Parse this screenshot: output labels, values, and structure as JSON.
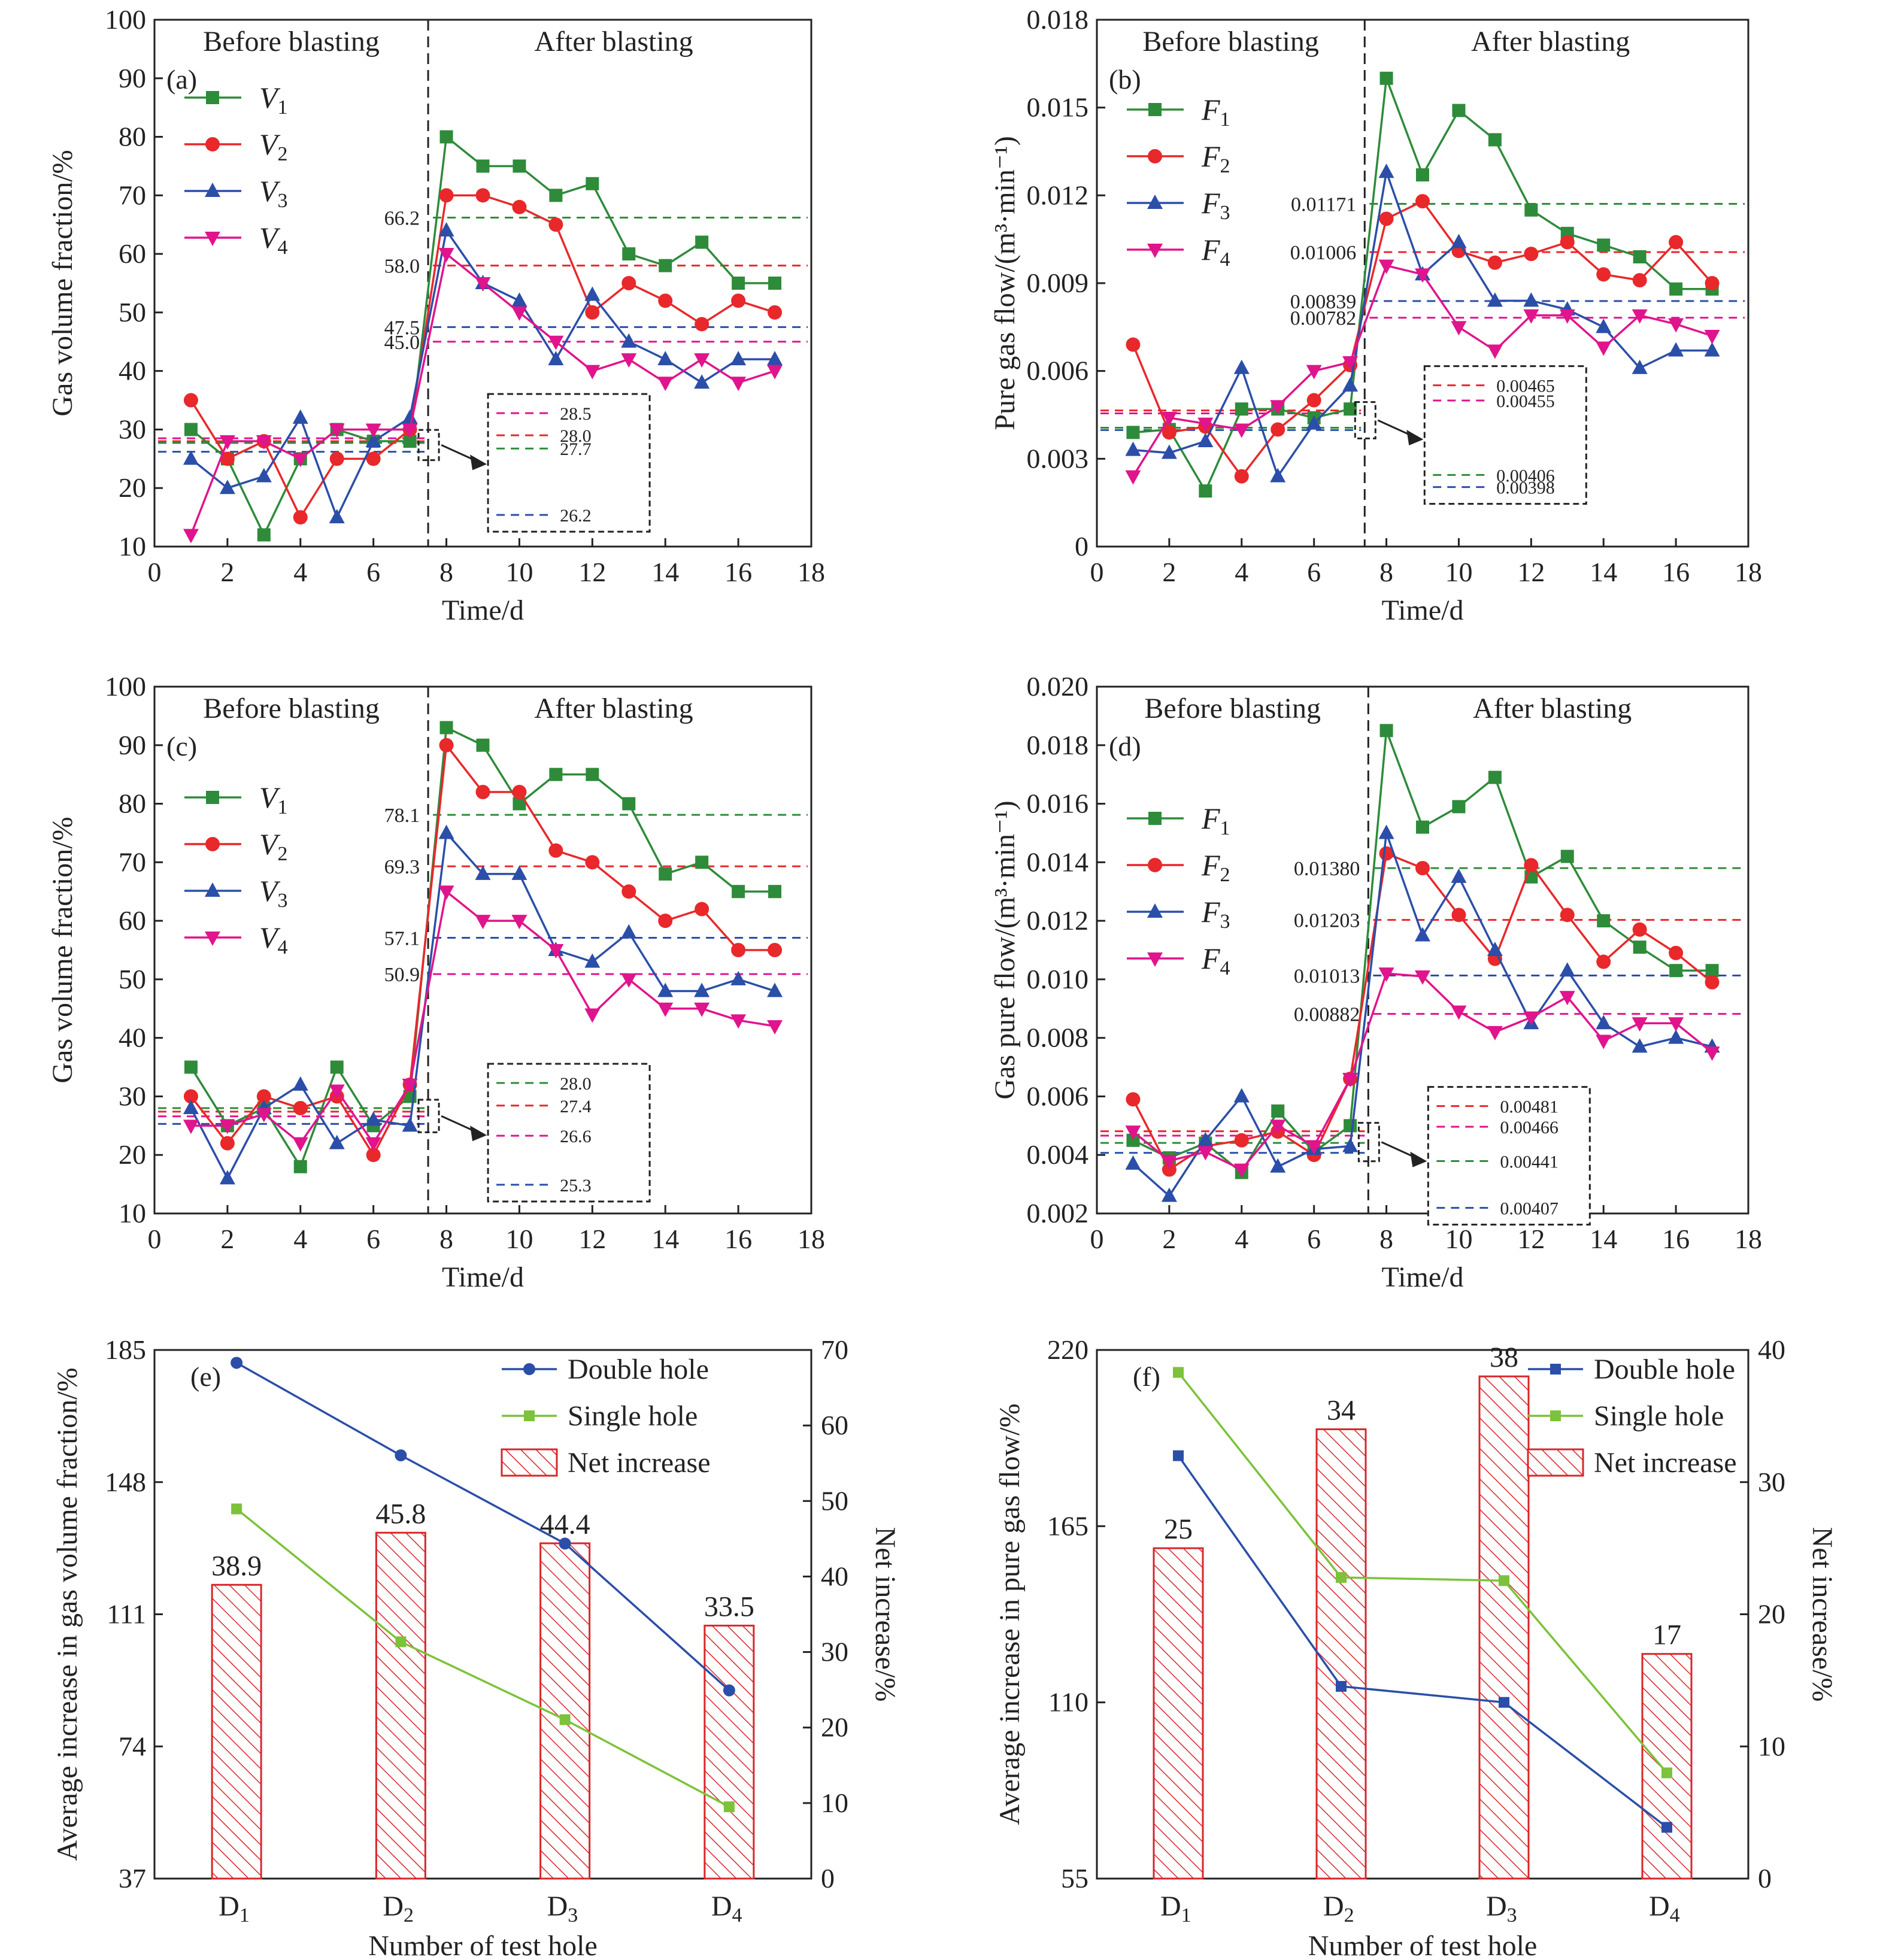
{
  "colors": {
    "green": "#2e8b3a",
    "red": "#e8282b",
    "blue": "#2b4ea8",
    "magenta": "#e0148c",
    "lime": "#7cc23a",
    "hatch": "#d9262a",
    "axis": "#222222"
  },
  "chart_data": [
    {
      "id": "a",
      "type": "line",
      "panel_label": "(a)",
      "title": "",
      "xlabel": "Time/d",
      "ylabel": "Gas volume fraction/%",
      "xlim": [
        0,
        18
      ],
      "ylim": [
        10,
        100
      ],
      "xticks": [
        0,
        2,
        4,
        6,
        8,
        10,
        12,
        14,
        16,
        18
      ],
      "yticks": [
        10,
        20,
        30,
        40,
        50,
        60,
        70,
        80,
        90,
        100
      ],
      "region_labels": [
        "Before blasting",
        "After blasting"
      ],
      "divider_x": 7.5,
      "legend_position": "top-left",
      "x": [
        1,
        2,
        3,
        4,
        5,
        6,
        7,
        8,
        9,
        10,
        11,
        12,
        13,
        14,
        15,
        16,
        17
      ],
      "series": [
        {
          "name": "V",
          "sub": "1",
          "color": "green",
          "marker": "square",
          "values": [
            30,
            25,
            12,
            25,
            30,
            28,
            28,
            80,
            75,
            75,
            70,
            72,
            60,
            58,
            62,
            55,
            55
          ]
        },
        {
          "name": "V",
          "sub": "2",
          "color": "red",
          "marker": "circle",
          "values": [
            35,
            25,
            28,
            15,
            25,
            25,
            30,
            70,
            70,
            68,
            65,
            50,
            55,
            52,
            48,
            52,
            50
          ]
        },
        {
          "name": "V",
          "sub": "3",
          "color": "blue",
          "marker": "triangle-up",
          "values": [
            25,
            20,
            22,
            32,
            15,
            28,
            32,
            64,
            55,
            52,
            42,
            53,
            45,
            42,
            38,
            42,
            42
          ]
        },
        {
          "name": "V",
          "sub": "4",
          "color": "magenta",
          "marker": "triangle-down",
          "values": [
            12,
            28,
            28,
            25,
            30,
            30,
            30,
            60,
            55,
            50,
            45,
            40,
            42,
            38,
            42,
            38,
            40
          ]
        }
      ],
      "after_means": [
        {
          "value": 66.2,
          "label": "66.2",
          "color": "green"
        },
        {
          "value": 58.0,
          "label": "58.0",
          "color": "red"
        },
        {
          "value": 47.5,
          "label": "47.5",
          "color": "blue"
        },
        {
          "value": 45.0,
          "label": "45.0",
          "color": "magenta"
        }
      ],
      "before_means": [
        {
          "value": 28.5,
          "label": "28.5",
          "color": "magenta"
        },
        {
          "value": 28.0,
          "label": "28.0",
          "color": "red"
        },
        {
          "value": 27.7,
          "label": "27.7",
          "color": "green"
        },
        {
          "value": 26.2,
          "label": "26.2",
          "color": "blue"
        }
      ]
    },
    {
      "id": "b",
      "type": "line",
      "panel_label": "(b)",
      "title": "",
      "xlabel": "Time/d",
      "ylabel": "Pure gas flow/(m³·min⁻¹)",
      "xlim": [
        0,
        18
      ],
      "ylim": [
        0,
        0.018
      ],
      "xticks": [
        0,
        2,
        4,
        6,
        8,
        10,
        12,
        14,
        16,
        18
      ],
      "yticks": [
        "0",
        "0.003",
        "0.006",
        "0.009",
        "0.012",
        "0.015",
        "0.018"
      ],
      "region_labels": [
        "Before blasting",
        "After blasting"
      ],
      "divider_x": 7.4,
      "legend_position": "top-left",
      "x": [
        1,
        2,
        3,
        4,
        5,
        6,
        7,
        8,
        9,
        10,
        11,
        12,
        13,
        14,
        15,
        16,
        17
      ],
      "series": [
        {
          "name": "F",
          "sub": "1",
          "color": "green",
          "marker": "square",
          "values": [
            0.0039,
            0.004,
            0.0019,
            0.0047,
            0.0047,
            0.0044,
            0.0047,
            0.016,
            0.0127,
            0.0149,
            0.0139,
            0.0115,
            0.0107,
            0.0103,
            0.0099,
            0.0088,
            0.0088
          ]
        },
        {
          "name": "F",
          "sub": "2",
          "color": "red",
          "marker": "circle",
          "values": [
            0.0069,
            0.0039,
            0.0041,
            0.0024,
            0.004,
            0.005,
            0.0062,
            0.0112,
            0.0118,
            0.0101,
            0.0097,
            0.01,
            0.0104,
            0.0093,
            0.0091,
            0.0104,
            0.009
          ]
        },
        {
          "name": "F",
          "sub": "3",
          "color": "blue",
          "marker": "triangle-up",
          "values": [
            0.0033,
            0.0032,
            0.0036,
            0.0061,
            0.0024,
            0.0042,
            0.0055,
            0.0128,
            0.0093,
            0.0104,
            0.0084,
            0.0084,
            0.0081,
            0.0075,
            0.0061,
            0.0067,
            0.0067
          ]
        },
        {
          "name": "F",
          "sub": "4",
          "color": "magenta",
          "marker": "triangle-down",
          "values": [
            0.0024,
            0.0044,
            0.0042,
            0.004,
            0.0048,
            0.006,
            0.0063,
            0.0096,
            0.0093,
            0.0075,
            0.0067,
            0.0079,
            0.0079,
            0.0068,
            0.0079,
            0.0076,
            0.0072
          ]
        }
      ],
      "after_means": [
        {
          "value": 0.01171,
          "label": "0.01171",
          "color": "green"
        },
        {
          "value": 0.01006,
          "label": "0.01006",
          "color": "red"
        },
        {
          "value": 0.00839,
          "label": "0.00839",
          "color": "blue"
        },
        {
          "value": 0.00782,
          "label": "0.00782",
          "color": "magenta"
        }
      ],
      "before_means": [
        {
          "value": 0.00465,
          "label": "0.00465",
          "color": "red"
        },
        {
          "value": 0.00455,
          "label": "0.00455",
          "color": "magenta"
        },
        {
          "value": 0.00406,
          "label": "0.00406",
          "color": "green"
        },
        {
          "value": 0.00398,
          "label": "0.00398",
          "color": "blue"
        }
      ]
    },
    {
      "id": "c",
      "type": "line",
      "panel_label": "(c)",
      "title": "",
      "xlabel": "Time/d",
      "ylabel": "Gas volume fraction/%",
      "xlim": [
        0,
        18
      ],
      "ylim": [
        10,
        100
      ],
      "xticks": [
        0,
        2,
        4,
        6,
        8,
        10,
        12,
        14,
        16,
        18
      ],
      "yticks": [
        10,
        20,
        30,
        40,
        50,
        60,
        70,
        80,
        90,
        100
      ],
      "region_labels": [
        "Before blasting",
        "After blasting"
      ],
      "divider_x": 7.5,
      "legend_position": "left",
      "x": [
        1,
        2,
        3,
        4,
        5,
        6,
        7,
        8,
        9,
        10,
        11,
        12,
        13,
        14,
        15,
        16,
        17
      ],
      "series": [
        {
          "name": "V",
          "sub": "1",
          "color": "green",
          "marker": "square",
          "values": [
            35,
            25,
            28,
            18,
            35,
            25,
            30,
            93,
            90,
            80,
            85,
            85,
            80,
            68,
            70,
            65,
            65
          ]
        },
        {
          "name": "V",
          "sub": "2",
          "color": "red",
          "marker": "circle",
          "values": [
            30,
            22,
            30,
            28,
            30,
            20,
            32,
            90,
            82,
            82,
            72,
            70,
            65,
            60,
            62,
            55,
            55
          ]
        },
        {
          "name": "V",
          "sub": "3",
          "color": "blue",
          "marker": "triangle-up",
          "values": [
            28,
            16,
            28,
            32,
            22,
            26,
            25,
            75,
            68,
            68,
            55,
            53,
            58,
            48,
            48,
            50,
            48
          ]
        },
        {
          "name": "V",
          "sub": "4",
          "color": "magenta",
          "marker": "triangle-down",
          "values": [
            25,
            25,
            27,
            22,
            31,
            22,
            32,
            65,
            60,
            60,
            55,
            44,
            50,
            45,
            45,
            43,
            42
          ]
        }
      ],
      "after_means": [
        {
          "value": 78.1,
          "label": "78.1",
          "color": "green"
        },
        {
          "value": 69.3,
          "label": "69.3",
          "color": "red"
        },
        {
          "value": 57.1,
          "label": "57.1",
          "color": "blue"
        },
        {
          "value": 50.9,
          "label": "50.9",
          "color": "magenta"
        }
      ],
      "before_means": [
        {
          "value": 28.0,
          "label": "28.0",
          "color": "green"
        },
        {
          "value": 27.4,
          "label": "27.4",
          "color": "red"
        },
        {
          "value": 26.6,
          "label": "26.6",
          "color": "magenta"
        },
        {
          "value": 25.3,
          "label": "25.3",
          "color": "blue"
        }
      ]
    },
    {
      "id": "d",
      "type": "line",
      "panel_label": "(d)",
      "title": "",
      "xlabel": "Time/d",
      "ylabel": "Gas pure flow/(m³·min⁻¹)",
      "xlim": [
        0,
        18
      ],
      "ylim": [
        0.002,
        0.02
      ],
      "xticks": [
        0,
        2,
        4,
        6,
        8,
        10,
        12,
        14,
        16,
        18
      ],
      "yticks": [
        "0.002",
        "0.004",
        "0.006",
        "0.008",
        "0.010",
        "0.012",
        "0.014",
        "0.016",
        "0.018",
        "0.020"
      ],
      "region_labels": [
        "Before blasting",
        "After blasting"
      ],
      "divider_x": 7.5,
      "legend_position": "left",
      "x": [
        1,
        2,
        3,
        4,
        5,
        6,
        7,
        8,
        9,
        10,
        11,
        12,
        13,
        14,
        15,
        16,
        17
      ],
      "series": [
        {
          "name": "F",
          "sub": "1",
          "color": "green",
          "marker": "square",
          "values": [
            0.0045,
            0.0039,
            0.0044,
            0.0034,
            0.0055,
            0.0041,
            0.005,
            0.0185,
            0.0152,
            0.0159,
            0.0169,
            0.0135,
            0.0142,
            0.012,
            0.0111,
            0.0103,
            0.0103
          ]
        },
        {
          "name": "F",
          "sub": "2",
          "color": "red",
          "marker": "circle",
          "values": [
            0.0059,
            0.0035,
            0.0043,
            0.0045,
            0.0048,
            0.004,
            0.0066,
            0.0143,
            0.0138,
            0.0122,
            0.0107,
            0.0139,
            0.0122,
            0.0106,
            0.0117,
            0.0109,
            0.0099
          ]
        },
        {
          "name": "F",
          "sub": "3",
          "color": "blue",
          "marker": "triangle-up",
          "values": [
            0.0037,
            0.0026,
            0.0045,
            0.006,
            0.0036,
            0.0042,
            0.0043,
            0.015,
            0.0115,
            0.0135,
            0.011,
            0.0085,
            0.0103,
            0.0085,
            0.0077,
            0.008,
            0.0077
          ]
        },
        {
          "name": "F",
          "sub": "4",
          "color": "magenta",
          "marker": "triangle-down",
          "values": [
            0.0048,
            0.0038,
            0.0041,
            0.0035,
            0.005,
            0.0043,
            0.0066,
            0.0102,
            0.0101,
            0.0089,
            0.0082,
            0.0087,
            0.0094,
            0.0079,
            0.0085,
            0.0085,
            0.0075
          ]
        }
      ],
      "after_means": [
        {
          "value": 0.0138,
          "label": "0.01380",
          "color": "green"
        },
        {
          "value": 0.01203,
          "label": "0.01203",
          "color": "red"
        },
        {
          "value": 0.01013,
          "label": "0.01013",
          "color": "blue"
        },
        {
          "value": 0.00882,
          "label": "0.00882",
          "color": "magenta"
        }
      ],
      "before_means": [
        {
          "value": 0.00481,
          "label": "0.00481",
          "color": "red"
        },
        {
          "value": 0.00466,
          "label": "0.00466",
          "color": "magenta"
        },
        {
          "value": 0.00441,
          "label": "0.00441",
          "color": "green"
        },
        {
          "value": 0.00407,
          "label": "0.00407",
          "color": "blue"
        }
      ]
    },
    {
      "id": "e",
      "type": "bar+line",
      "panel_label": "(e)",
      "title": "",
      "xlabel": "Number of test hole",
      "ylabel": "Average increase in gas volume fraction/%",
      "y2label": "Net increase/%",
      "categories": [
        {
          "main": "D",
          "sub": "1"
        },
        {
          "main": "D",
          "sub": "2"
        },
        {
          "main": "D",
          "sub": "3"
        },
        {
          "main": "D",
          "sub": "4"
        }
      ],
      "ylim": [
        37,
        185
      ],
      "yticks": [
        37,
        74,
        111,
        148,
        185
      ],
      "y2lim": [
        0,
        70
      ],
      "y2ticks": [
        0,
        10,
        20,
        30,
        40,
        50,
        60,
        70
      ],
      "legend_position": "top-right",
      "bars": {
        "name": "Net increase",
        "axis": "right",
        "values": [
          38.9,
          45.8,
          44.4,
          33.5
        ],
        "labels": [
          "38.9",
          "45.8",
          "44.4",
          "33.5"
        ]
      },
      "series": [
        {
          "name": "Double hole",
          "axis": "left",
          "color": "blue",
          "marker": "circle",
          "values": [
            181.4,
            155.5,
            130.8,
            89.7
          ]
        },
        {
          "name": "Single hole",
          "axis": "left",
          "color": "lime",
          "marker": "square",
          "values": [
            140.5,
            103.3,
            81.5,
            57.1
          ]
        }
      ]
    },
    {
      "id": "f",
      "type": "bar+line",
      "panel_label": "(f)",
      "title": "",
      "xlabel": "Number of test hole",
      "ylabel": "Average increase in pure gas flow/%",
      "y2label": "Net increase/%",
      "categories": [
        {
          "main": "D",
          "sub": "1"
        },
        {
          "main": "D",
          "sub": "2"
        },
        {
          "main": "D",
          "sub": "3"
        },
        {
          "main": "D",
          "sub": "4"
        }
      ],
      "ylim": [
        55,
        220
      ],
      "yticks": [
        55,
        110,
        165,
        220
      ],
      "y2lim": [
        0,
        40
      ],
      "y2ticks": [
        0,
        10,
        20,
        30,
        40
      ],
      "legend_position": "top-right",
      "bars": {
        "name": "Net increase",
        "axis": "right",
        "values": [
          25,
          34,
          38,
          17
        ],
        "labels": [
          "25",
          "34",
          "38",
          "17"
        ]
      },
      "series": [
        {
          "name": "Double hole",
          "axis": "left",
          "color": "blue",
          "marker": "square",
          "values": [
            187,
            115,
            110,
            71
          ]
        },
        {
          "name": "Single hole",
          "axis": "left",
          "color": "lime",
          "marker": "square",
          "values": [
            213,
            149,
            148,
            88
          ]
        }
      ]
    }
  ]
}
